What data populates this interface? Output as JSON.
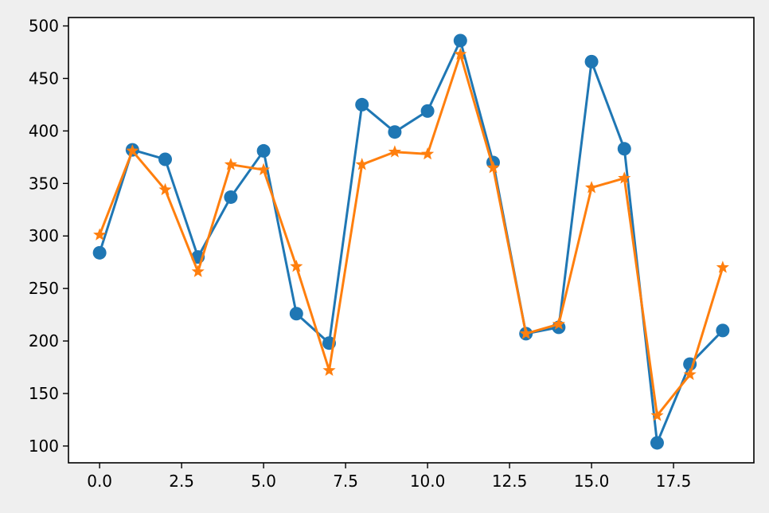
{
  "chart_data": {
    "type": "line",
    "title": "",
    "xlabel": "",
    "ylabel": "",
    "xlim": [
      -0.95,
      19.95
    ],
    "ylim": [
      84,
      508
    ],
    "grid": false,
    "x": [
      0,
      1,
      2,
      3,
      4,
      5,
      6,
      7,
      8,
      9,
      10,
      11,
      12,
      13,
      14,
      15,
      16,
      17,
      18,
      19
    ],
    "x_ticks": [
      0.0,
      2.5,
      5.0,
      7.5,
      10.0,
      12.5,
      15.0,
      17.5
    ],
    "x_tick_labels": [
      "0.0",
      "2.5",
      "5.0",
      "7.5",
      "10.0",
      "12.5",
      "15.0",
      "17.5"
    ],
    "y_ticks": [
      100,
      150,
      200,
      250,
      300,
      350,
      400,
      450,
      500
    ],
    "y_tick_labels": [
      "100",
      "150",
      "200",
      "250",
      "300",
      "350",
      "400",
      "450",
      "500"
    ],
    "series": [
      {
        "color": "#1f77b4",
        "marker": "circle",
        "values": [
          284,
          382,
          373,
          280,
          337,
          381,
          226,
          198,
          425,
          399,
          419,
          486,
          370,
          207,
          213,
          466,
          383,
          103,
          178,
          210
        ]
      },
      {
        "color": "#ff7f0e",
        "marker": "star",
        "values": [
          301,
          381,
          344,
          266,
          368,
          363,
          271,
          172,
          368,
          380,
          378,
          473,
          365,
          207,
          216,
          346,
          355,
          129,
          168,
          270
        ]
      }
    ]
  }
}
